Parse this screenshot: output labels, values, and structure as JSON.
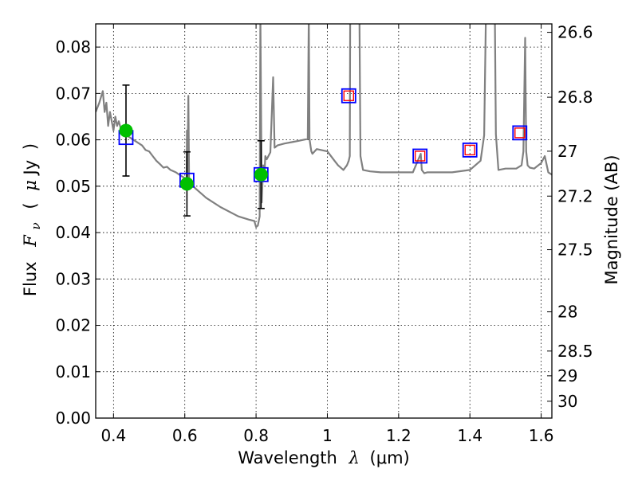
{
  "chart_data": {
    "type": "scatter",
    "xlim": [
      0.35,
      1.63
    ],
    "ylim": [
      0.0,
      0.085
    ],
    "x_ticks": [
      0.4,
      0.6,
      0.8,
      1.0,
      1.2,
      1.4,
      1.6
    ],
    "x_tick_labels": [
      "0.4",
      "0.6",
      "0.8",
      "1",
      "1.2",
      "1.4",
      "1.6"
    ],
    "y_ticks": [
      0.0,
      0.01,
      0.02,
      0.03,
      0.04,
      0.05,
      0.06,
      0.07,
      0.08
    ],
    "y_tick_labels": [
      "0.00",
      "0.01",
      "0.02",
      "0.03",
      "0.04",
      "0.05",
      "0.06",
      "0.07",
      "0.08"
    ],
    "right_axis_ticks": [
      26.6,
      26.8,
      27.0,
      27.2,
      27.5,
      28.0,
      28.5,
      29.0,
      30.0
    ],
    "right_axis_tick_labels": [
      "26.6",
      "26.8",
      "27",
      "27.2",
      "27.5",
      "28",
      "28.5",
      "29",
      "30"
    ],
    "xlabel_text": "Wavelength",
    "xlabel_math": "λ",
    "xlabel_units": "(μm)",
    "ylabel_text": "Flux",
    "ylabel_math": "F",
    "ylabel_sub": "ν",
    "ylabel_units_open": "(",
    "ylabel_units_mu": "μ",
    "ylabel_units_rest": "Jy",
    "ylabel_units_close": ")",
    "right_label": "Magnitude (AB)",
    "grid": true,
    "series": [
      {
        "kind": "observed_flux",
        "marker": "circle",
        "color": "#00c000",
        "x": [
          0.435,
          0.606,
          0.814
        ],
        "y": [
          0.062,
          0.0505,
          0.0525
        ],
        "yerr": [
          0.0098,
          0.0069,
          0.0073
        ]
      },
      {
        "kind": "model_flux",
        "marker": "square",
        "color": "#0000ff",
        "x": [
          0.435,
          0.606,
          0.814,
          1.06,
          1.26,
          1.4,
          1.54
        ],
        "y": [
          0.0605,
          0.0513,
          0.0525,
          0.0695,
          0.0565,
          0.0578,
          0.0615
        ]
      },
      {
        "kind": "upper_limit",
        "marker": "square",
        "color": "#ff0000",
        "x": [
          1.06,
          1.26,
          1.4,
          1.54
        ],
        "y": [
          0.0695,
          0.0565,
          0.0578,
          0.0615
        ]
      },
      {
        "kind": "model_spectrum",
        "marker": "line",
        "color": "#808080",
        "x": [
          0.35,
          0.36,
          0.37,
          0.375,
          0.38,
          0.385,
          0.39,
          0.395,
          0.4,
          0.405,
          0.41,
          0.415,
          0.42,
          0.43,
          0.44,
          0.46,
          0.48,
          0.49,
          0.5,
          0.51,
          0.52,
          0.53,
          0.54,
          0.55,
          0.56,
          0.575,
          0.59,
          0.605,
          0.606,
          0.607,
          0.61,
          0.612,
          0.614,
          0.618,
          0.63,
          0.66,
          0.7,
          0.75,
          0.78,
          0.795,
          0.8,
          0.805,
          0.81,
          0.812,
          0.816,
          0.82,
          0.823,
          0.826,
          0.83,
          0.84,
          0.848,
          0.852,
          0.86,
          0.88,
          0.9,
          0.92,
          0.945,
          0.948,
          0.95,
          0.953,
          0.955,
          0.958,
          0.97,
          1.0,
          1.02,
          1.03,
          1.045,
          1.055,
          1.06,
          1.063,
          1.064,
          1.068,
          1.09,
          1.093,
          1.1,
          1.12,
          1.15,
          1.2,
          1.24,
          1.262,
          1.265,
          1.272,
          1.28,
          1.35,
          1.4,
          1.43,
          1.44,
          1.445,
          1.45,
          1.47,
          1.473,
          1.48,
          1.5,
          1.53,
          1.545,
          1.55,
          1.555,
          1.558,
          1.562,
          1.568,
          1.58,
          1.6,
          1.61,
          1.62,
          1.63
        ],
        "y": [
          0.066,
          0.068,
          0.0705,
          0.066,
          0.068,
          0.063,
          0.066,
          0.064,
          0.062,
          0.065,
          0.063,
          0.064,
          0.0625,
          0.062,
          0.0608,
          0.0598,
          0.0588,
          0.0578,
          0.0575,
          0.0565,
          0.0555,
          0.0548,
          0.054,
          0.0542,
          0.0535,
          0.053,
          0.0522,
          0.0515,
          0.062,
          0.0515,
          0.0695,
          0.0518,
          0.051,
          0.0505,
          0.0495,
          0.0475,
          0.0455,
          0.0435,
          0.0428,
          0.0425,
          0.0412,
          0.0415,
          0.0435,
          0.087,
          0.0465,
          0.0545,
          0.052,
          0.0565,
          0.0558,
          0.0573,
          0.0735,
          0.0583,
          0.0588,
          0.0592,
          0.0595,
          0.0598,
          0.0602,
          0.087,
          0.0602,
          0.0585,
          0.0575,
          0.057,
          0.058,
          0.0575,
          0.0555,
          0.0545,
          0.0535,
          0.0545,
          0.0555,
          0.0565,
          0.087,
          0.087,
          0.087,
          0.0565,
          0.0535,
          0.0532,
          0.053,
          0.053,
          0.053,
          0.057,
          0.0535,
          0.0528,
          0.053,
          0.053,
          0.0535,
          0.0555,
          0.061,
          0.087,
          0.087,
          0.087,
          0.0612,
          0.0535,
          0.0538,
          0.0538,
          0.0545,
          0.0575,
          0.082,
          0.0575,
          0.0545,
          0.054,
          0.0538,
          0.055,
          0.0565,
          0.053,
          0.0525
        ]
      }
    ]
  }
}
